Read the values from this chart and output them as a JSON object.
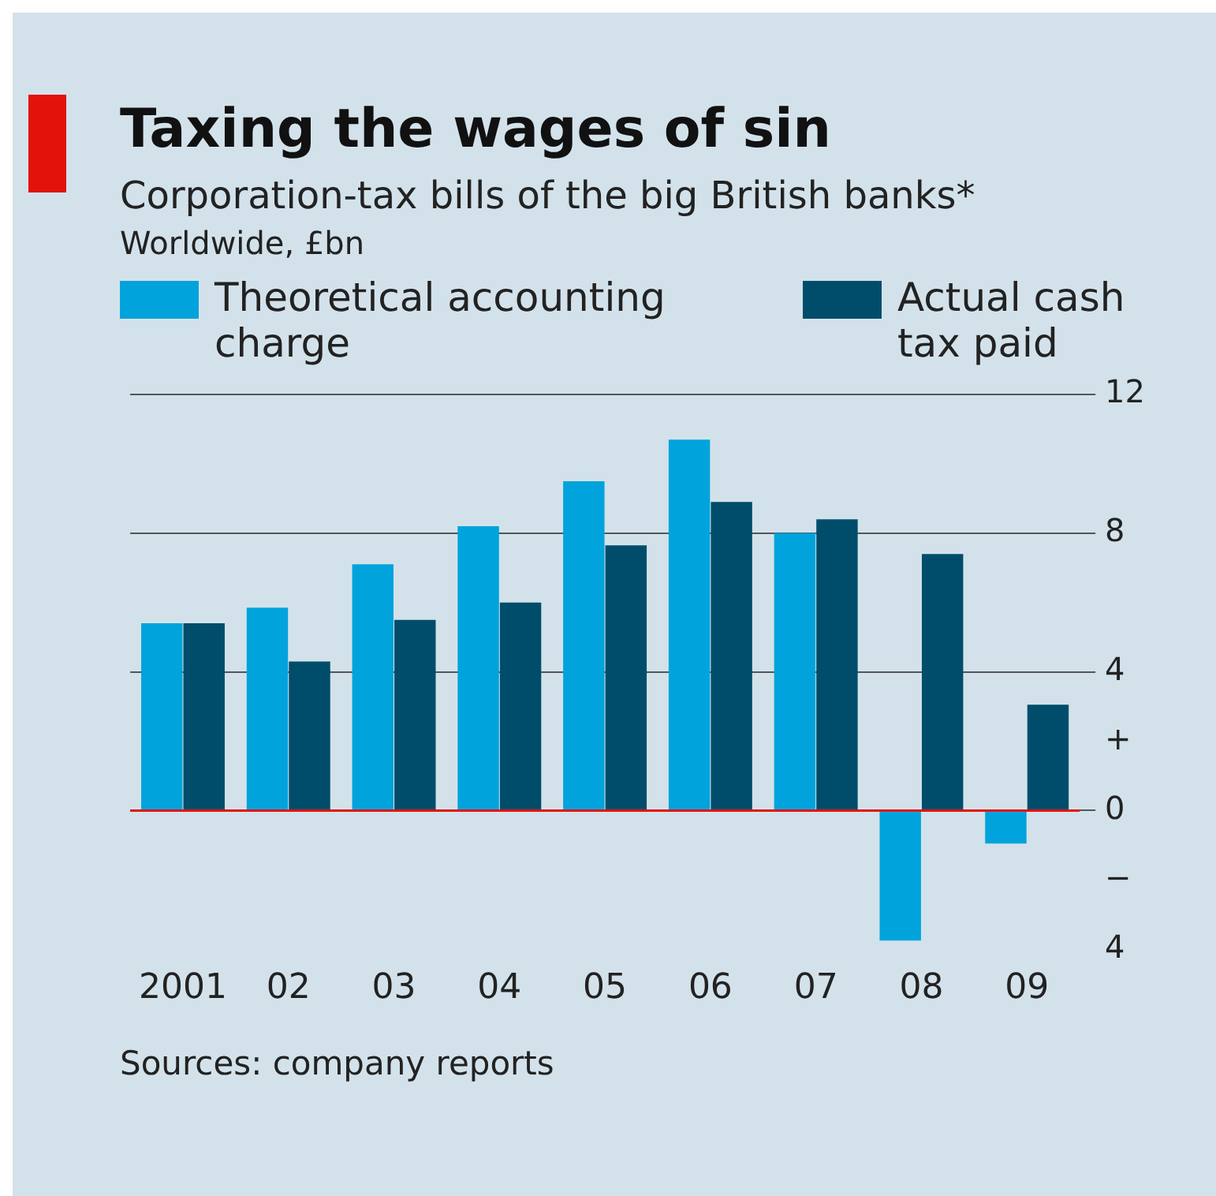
{
  "chart_data": {
    "type": "bar",
    "title": "Taxing the wages of sin",
    "subtitle": "Corporation-tax bills of the big British banks*",
    "ylabel": "Worldwide, £bn",
    "categories": [
      "2001",
      "02",
      "03",
      "04",
      "05",
      "06",
      "07",
      "08",
      "09"
    ],
    "series": [
      {
        "name": "Theoretical accounting charge",
        "color": "#00a3dc",
        "values": [
          5.4,
          5.85,
          7.1,
          8.2,
          9.5,
          10.7,
          8.0,
          -3.75,
          -0.95
        ]
      },
      {
        "name": "Actual cash tax paid",
        "color": "#004d6b",
        "values": [
          5.4,
          4.3,
          5.5,
          6.0,
          7.65,
          8.9,
          8.4,
          7.4,
          3.05
        ]
      }
    ],
    "ylim": [
      -4,
      12
    ],
    "yticks": [
      12,
      8,
      4,
      {
        "value": 2,
        "label": "+"
      },
      0,
      {
        "value": -2,
        "label": "−"
      },
      {
        "value": -4,
        "label": "4"
      }
    ],
    "grid": "y",
    "legend": "top",
    "ref_lines": [
      {
        "axis": "y",
        "value": 0,
        "color": "#e3120b"
      }
    ],
    "annotations": [
      "Sources: company reports"
    ]
  }
}
